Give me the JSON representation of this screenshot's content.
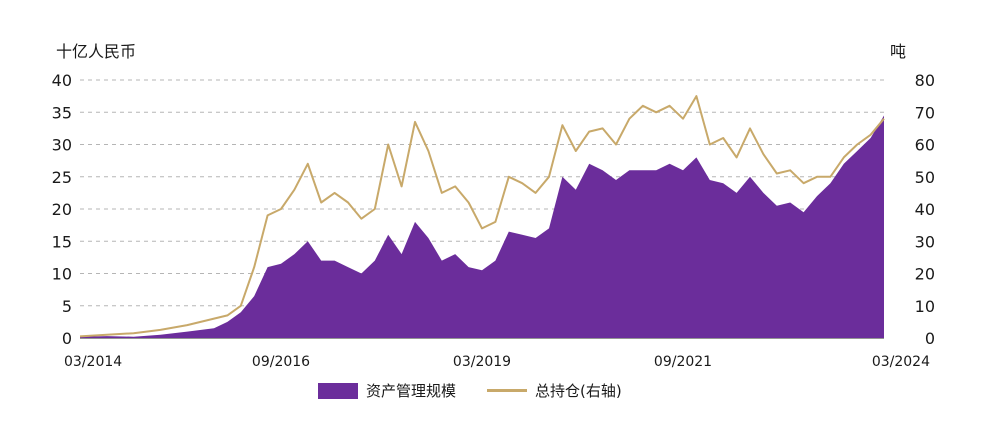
{
  "chart_data": {
    "type": "area",
    "left_axis_title": "十亿人民币",
    "right_axis_title": "吨",
    "y_left": {
      "range": [
        0,
        40
      ],
      "ticks": [
        "0",
        "5",
        "10",
        "15",
        "20",
        "25",
        "30",
        "35",
        "40"
      ]
    },
    "y_right": {
      "range": [
        0,
        80
      ],
      "ticks": [
        "0",
        "10",
        "20",
        "30",
        "40",
        "50",
        "60",
        "70",
        "80"
      ]
    },
    "x_range": [
      "2014-03",
      "2024-03"
    ],
    "x_ticks": [
      "03/2014",
      "09/2016",
      "03/2019",
      "09/2021",
      "03/2024"
    ],
    "grid": "horizontal dashed",
    "legend_position": "bottom",
    "colors": {
      "area": "#6b2d9b",
      "line": "#c8a96a",
      "grid": "#b5b5b5"
    },
    "series": [
      {
        "name": "资产管理规模",
        "type": "area",
        "axis": "left",
        "x": [
          "2014-03",
          "2014-07",
          "2014-11",
          "2015-03",
          "2015-07",
          "2015-11",
          "2016-01",
          "2016-03",
          "2016-05",
          "2016-07",
          "2016-09",
          "2016-11",
          "2017-01",
          "2017-03",
          "2017-05",
          "2017-07",
          "2017-09",
          "2017-11",
          "2018-01",
          "2018-03",
          "2018-05",
          "2018-07",
          "2018-09",
          "2018-11",
          "2019-01",
          "2019-03",
          "2019-05",
          "2019-07",
          "2019-09",
          "2019-11",
          "2020-01",
          "2020-03",
          "2020-05",
          "2020-07",
          "2020-09",
          "2020-11",
          "2021-01",
          "2021-03",
          "2021-05",
          "2021-07",
          "2021-09",
          "2021-11",
          "2022-01",
          "2022-03",
          "2022-05",
          "2022-07",
          "2022-09",
          "2022-11",
          "2023-01",
          "2023-03",
          "2023-05",
          "2023-07",
          "2023-09",
          "2023-11",
          "2024-01",
          "2024-03"
        ],
        "values": [
          0.2,
          0.3,
          0.2,
          0.5,
          1.0,
          1.5,
          2.5,
          4.0,
          6.5,
          11.0,
          11.5,
          13.0,
          15.0,
          12.0,
          12.0,
          11.0,
          10.0,
          12.0,
          16.0,
          13.0,
          18.0,
          15.5,
          12.0,
          13.0,
          11.0,
          10.5,
          12.0,
          16.5,
          16.0,
          15.5,
          17.0,
          25.0,
          23.0,
          27.0,
          26.0,
          24.5,
          26.0,
          26.0,
          26.0,
          27.0,
          26.0,
          28.0,
          24.5,
          24.0,
          22.5,
          25.0,
          22.5,
          20.5,
          21.0,
          19.5,
          22.0,
          24.0,
          27.0,
          29.0,
          31.0,
          34.5
        ]
      },
      {
        "name": "总持仓(右轴)",
        "type": "line",
        "axis": "right",
        "x": [
          "2014-03",
          "2014-07",
          "2014-11",
          "2015-03",
          "2015-07",
          "2015-11",
          "2016-01",
          "2016-03",
          "2016-05",
          "2016-07",
          "2016-09",
          "2016-11",
          "2017-01",
          "2017-03",
          "2017-05",
          "2017-07",
          "2017-09",
          "2017-11",
          "2018-01",
          "2018-03",
          "2018-05",
          "2018-07",
          "2018-09",
          "2018-11",
          "2019-01",
          "2019-03",
          "2019-05",
          "2019-07",
          "2019-09",
          "2019-11",
          "2020-01",
          "2020-03",
          "2020-05",
          "2020-07",
          "2020-09",
          "2020-11",
          "2021-01",
          "2021-03",
          "2021-05",
          "2021-07",
          "2021-09",
          "2021-11",
          "2022-01",
          "2022-03",
          "2022-05",
          "2022-07",
          "2022-09",
          "2022-11",
          "2023-01",
          "2023-03",
          "2023-05",
          "2023-07",
          "2023-09",
          "2023-11",
          "2024-01",
          "2024-03"
        ],
        "values": [
          0.5,
          1.0,
          1.5,
          2.5,
          4.0,
          6.0,
          7.0,
          10.0,
          22.0,
          38.0,
          40.0,
          46.0,
          54.0,
          42.0,
          45.0,
          42.0,
          37.0,
          40.0,
          60.0,
          47.0,
          67.0,
          58.0,
          45.0,
          47.0,
          42.0,
          34.0,
          36.0,
          50.0,
          48.0,
          45.0,
          50.0,
          66.0,
          58.0,
          64.0,
          65.0,
          60.0,
          68.0,
          72.0,
          70.0,
          72.0,
          68.0,
          75.0,
          60.0,
          62.0,
          56.0,
          65.0,
          57.0,
          51.0,
          52.0,
          48.0,
          50.0,
          50.0,
          56.0,
          60.0,
          63.0,
          68.0
        ]
      }
    ]
  }
}
